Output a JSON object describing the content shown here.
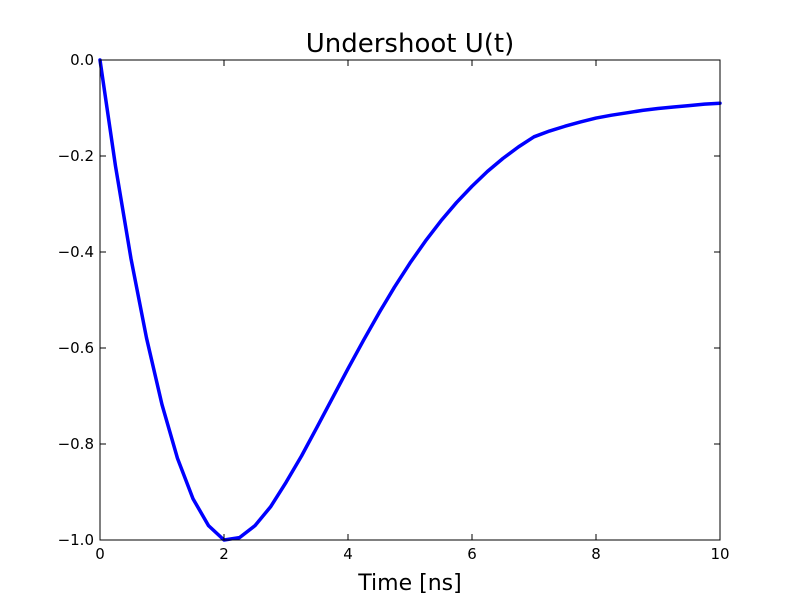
{
  "chart_data": {
    "type": "line",
    "title": "Undershoot U(t)",
    "xlabel": "Time [ns]",
    "ylabel": "",
    "xlim": [
      0,
      10
    ],
    "ylim": [
      -1.0,
      0.0
    ],
    "grid": false,
    "legend": "none",
    "x_ticks": [
      0,
      2,
      4,
      6,
      8,
      10
    ],
    "x_tick_labels": [
      "0",
      "2",
      "4",
      "6",
      "8",
      "10"
    ],
    "y_ticks": [
      0.0,
      -0.2,
      -0.4,
      -0.6,
      -0.8,
      -1.0
    ],
    "y_tick_labels": [
      "0.0",
      "−0.2",
      "−0.4",
      "−0.6",
      "−0.8",
      "−1.0"
    ],
    "series": [
      {
        "color": "#0000ff",
        "x": [
          0,
          0.25,
          0.5,
          0.75,
          1.0,
          1.25,
          1.5,
          1.75,
          2.0,
          2.25,
          2.5,
          2.75,
          3.0,
          3.25,
          3.5,
          3.75,
          4.0,
          4.25,
          4.5,
          4.75,
          5.0,
          5.25,
          5.5,
          5.75,
          6.0,
          6.25,
          6.5,
          6.75,
          7.0,
          7.25,
          7.5,
          7.75,
          8.0,
          8.25,
          8.5,
          8.75,
          9.0,
          9.25,
          9.5,
          9.75,
          10.0
        ],
        "y": [
          0.0,
          -0.221,
          -0.414,
          -0.579,
          -0.718,
          -0.83,
          -0.914,
          -0.97,
          -1.0,
          -0.995,
          -0.97,
          -0.931,
          -0.88,
          -0.825,
          -0.765,
          -0.704,
          -0.643,
          -0.584,
          -0.527,
          -0.473,
          -0.423,
          -0.377,
          -0.335,
          -0.297,
          -0.263,
          -0.232,
          -0.205,
          -0.181,
          -0.16,
          -0.148,
          -0.138,
          -0.129,
          -0.121,
          -0.115,
          -0.11,
          -0.105,
          -0.101,
          -0.098,
          -0.095,
          -0.092,
          -0.09
        ]
      }
    ]
  }
}
